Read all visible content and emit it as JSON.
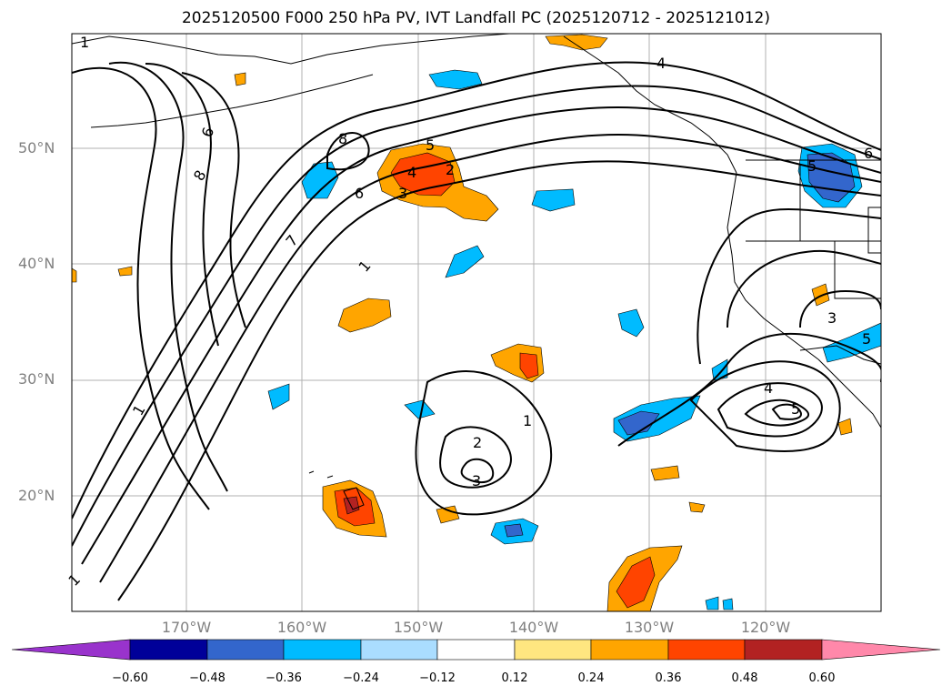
{
  "title": "2025120500 F000 250 hPa PV, IVT Landfall PC (2025120712 - 2025121012)",
  "lat_labels": [
    "50°N",
    "40°N",
    "30°N",
    "20°N"
  ],
  "lon_labels": [
    "170°W",
    "160°W",
    "150°W",
    "140°W",
    "130°W",
    "120°W"
  ],
  "colorbar": {
    "ticks": [
      "−0.60",
      "−0.48",
      "−0.36",
      "−0.24",
      "−0.12",
      "0.12",
      "0.24",
      "0.36",
      "0.48",
      "0.60"
    ],
    "colors": [
      "#9933cc",
      "#000099",
      "#3366cc",
      "#00bbff",
      "#aaddff",
      "#ffffff",
      "#ffe680",
      "#ffa500",
      "#ff4400",
      "#b22222",
      "#ff88aa"
    ]
  },
  "contour_labels": {
    "pv_1_a": "1",
    "pv_1_b": "1",
    "pv_1_c": "1",
    "pv_1_d": "1",
    "pv_1_e": "1",
    "pv_2_a": "2",
    "pv_2_b": "2",
    "pv_3_a": "3",
    "pv_3_b": "3",
    "pv_3_c": "3",
    "pv_4_a": "4",
    "pv_4_b": "4",
    "pv_4_c": "4",
    "pv_5_a": "5",
    "pv_5_b": "5",
    "pv_5_c": "5",
    "pv_5_d": "5",
    "pv_6_a": "6",
    "pv_6_b": "6",
    "pv_6_c": "6",
    "pv_7_a": "7",
    "pv_8_a": "8",
    "pv_8_b": "8"
  }
}
